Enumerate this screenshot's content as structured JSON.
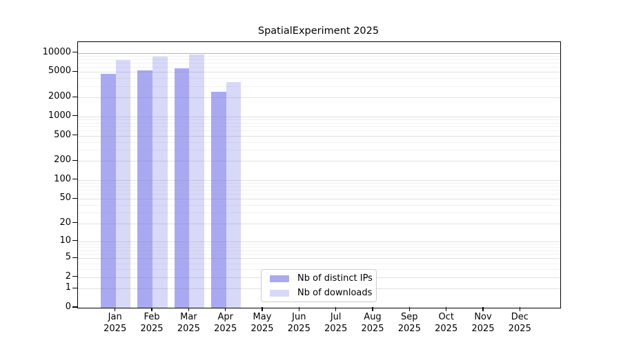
{
  "chart_data": {
    "type": "bar",
    "title": "SpatialExperiment 2025",
    "categories": [
      "Jan",
      "Feb",
      "Mar",
      "Apr",
      "May",
      "Jun",
      "Jul",
      "Aug",
      "Sep",
      "Oct",
      "Nov",
      "Dec"
    ],
    "x_sub_label": "2025",
    "series": [
      {
        "name": "Nb of distinct IPs",
        "color": "#a9a9f2",
        "values": [
          4700,
          5300,
          5700,
          2480,
          null,
          null,
          null,
          null,
          null,
          null,
          null,
          null
        ]
      },
      {
        "name": "Nb of downloads",
        "color": "#d8d8f9",
        "values": [
          7800,
          8800,
          9500,
          3500,
          null,
          null,
          null,
          null,
          null,
          null,
          null,
          null
        ]
      }
    ],
    "y_ticks": [
      0,
      1,
      2,
      5,
      10,
      20,
      50,
      100,
      200,
      500,
      1000,
      2000,
      5000,
      10000
    ],
    "y_scale": "log10(value+1)",
    "ylim": [
      0,
      14500
    ],
    "xlabel": "",
    "ylabel": "",
    "grid": "on",
    "legend_position": "bottom-center",
    "colors": {
      "grid_major": "rgba(120,120,120,0.22)",
      "grid_minor": "rgba(150,150,150,0.13)",
      "grid_top": "rgba(90,90,90,0.45)",
      "axis": "#000000",
      "background": "#ffffff"
    }
  }
}
